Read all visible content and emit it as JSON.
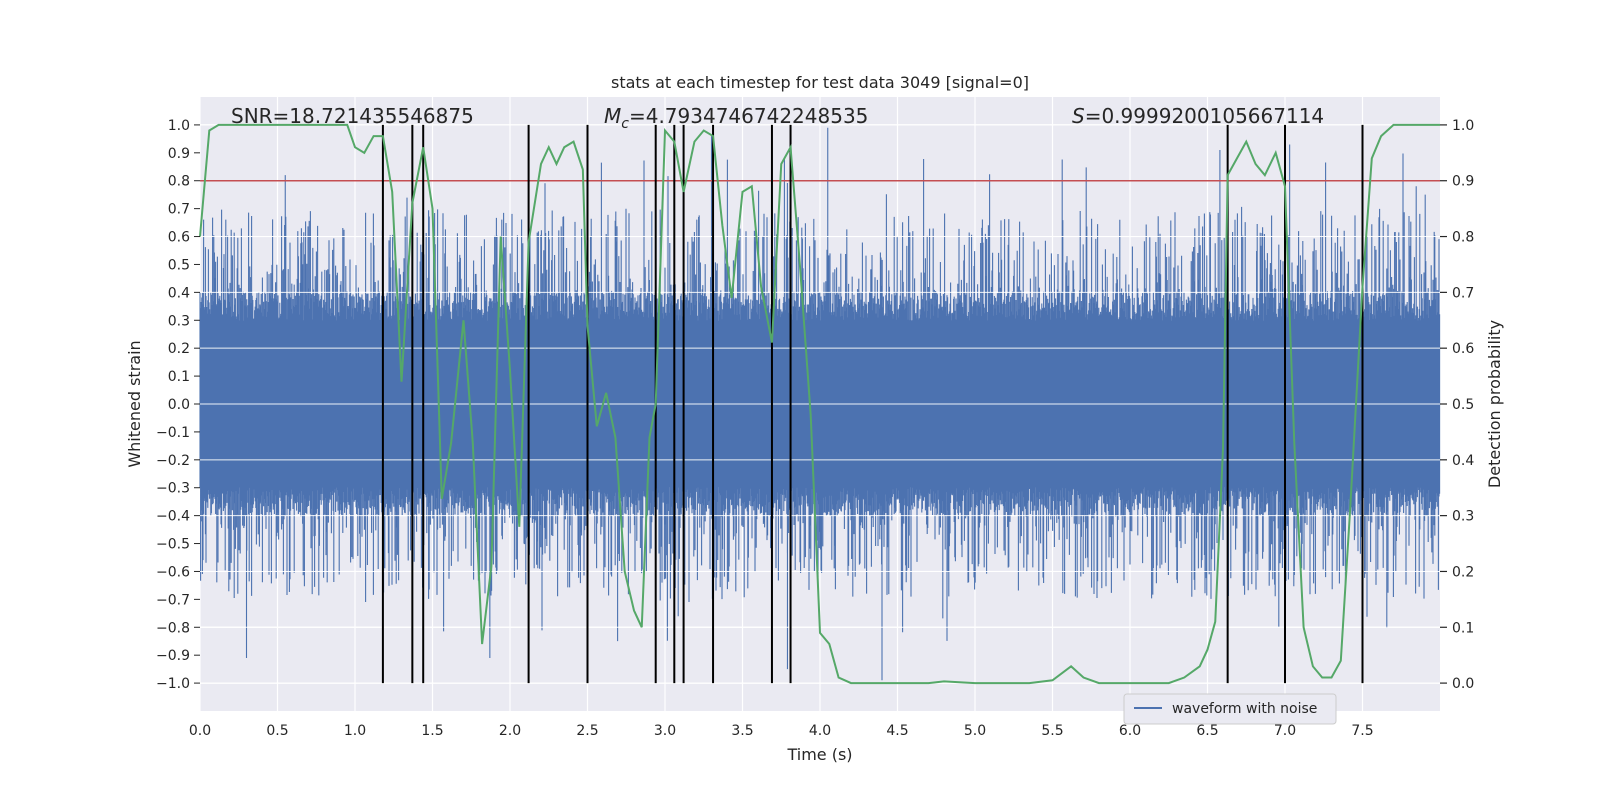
{
  "chart_data": {
    "type": "line",
    "title": "stats at each timestep for test data 3049 [signal=0]",
    "xlabel": "Time (s)",
    "ylabel": "Whitened strain",
    "y2label": "Detection probability",
    "xlim": [
      0,
      8
    ],
    "ylim": [
      -1.1,
      1.1
    ],
    "y2lim": [
      -0.05,
      1.05
    ],
    "grid": true,
    "legend_placement": "lower-right",
    "x_ticks": [
      "0.0",
      "0.5",
      "1.0",
      "1.5",
      "2.0",
      "2.5",
      "3.0",
      "3.5",
      "4.0",
      "4.5",
      "5.0",
      "5.5",
      "6.0",
      "6.5",
      "7.0",
      "7.5"
    ],
    "y_ticks": [
      "1.0",
      "0.9",
      "0.8",
      "0.7",
      "0.6",
      "0.5",
      "0.4",
      "0.3",
      "0.2",
      "0.1",
      "0.0",
      "−0.1",
      "−0.2",
      "−0.3",
      "−0.4",
      "−0.5",
      "−0.6",
      "−0.7",
      "−0.8",
      "−0.9",
      "−1.0"
    ],
    "y2_ticks": [
      "1.0",
      "0.9",
      "0.8",
      "0.7",
      "0.6",
      "0.5",
      "0.4",
      "0.3",
      "0.2",
      "0.1",
      "0.0"
    ],
    "annotations": {
      "snr": "SNR=18.721435546875",
      "mc_symbol": "M",
      "mc_sub": "c",
      "mc_value": "=4.7934746742248535",
      "s_symbol": "S",
      "s_value": "=0.9999200105667114"
    },
    "threshold_y": 0.9,
    "threshold_color": "#c44e52",
    "event_lines_x": [
      1.18,
      1.37,
      1.44,
      2.12,
      2.5,
      2.94,
      3.06,
      3.12,
      3.31,
      3.69,
      3.81,
      6.63,
      7.0,
      7.5
    ],
    "series": [
      {
        "name": "waveform with noise",
        "axis": "left",
        "color": "#4c72b0",
        "kind": "noise",
        "amplitude_core": 0.35,
        "amplitude_peak": 0.97
      },
      {
        "axis": "right",
        "color": "#55a868",
        "x": [
          0.0,
          0.06,
          0.12,
          0.2,
          0.3,
          0.5,
          0.7,
          0.9,
          0.95,
          1.0,
          1.06,
          1.12,
          1.18,
          1.24,
          1.3,
          1.37,
          1.44,
          1.5,
          1.56,
          1.62,
          1.7,
          1.76,
          1.82,
          1.88,
          1.94,
          2.0,
          2.06,
          2.12,
          2.2,
          2.25,
          2.3,
          2.35,
          2.41,
          2.47,
          2.5,
          2.56,
          2.62,
          2.68,
          2.74,
          2.8,
          2.85,
          2.9,
          2.94,
          3.0,
          3.06,
          3.12,
          3.19,
          3.25,
          3.31,
          3.37,
          3.43,
          3.5,
          3.56,
          3.62,
          3.69,
          3.75,
          3.81,
          3.87,
          3.94,
          4.0,
          4.06,
          4.12,
          4.2,
          4.3,
          4.5,
          4.7,
          4.8,
          5.0,
          5.2,
          5.35,
          5.5,
          5.62,
          5.7,
          5.8,
          6.0,
          6.25,
          6.35,
          6.45,
          6.5,
          6.55,
          6.6,
          6.63,
          6.69,
          6.75,
          6.81,
          6.87,
          6.94,
          7.0,
          7.06,
          7.12,
          7.18,
          7.24,
          7.3,
          7.36,
          7.42,
          7.5,
          7.56,
          7.62,
          7.7,
          8.0
        ],
        "values": [
          0.8,
          0.99,
          1.0,
          1.0,
          1.0,
          1.0,
          1.0,
          1.0,
          1.0,
          0.96,
          0.95,
          0.98,
          0.98,
          0.88,
          0.54,
          0.86,
          0.96,
          0.85,
          0.33,
          0.43,
          0.65,
          0.43,
          0.07,
          0.21,
          0.8,
          0.56,
          0.28,
          0.79,
          0.93,
          0.96,
          0.93,
          0.96,
          0.97,
          0.92,
          0.64,
          0.46,
          0.52,
          0.44,
          0.2,
          0.13,
          0.1,
          0.44,
          0.5,
          0.99,
          0.97,
          0.88,
          0.97,
          0.99,
          0.98,
          0.82,
          0.69,
          0.88,
          0.89,
          0.71,
          0.61,
          0.93,
          0.96,
          0.75,
          0.48,
          0.09,
          0.07,
          0.01,
          0.0,
          0.0,
          0.0,
          0.0,
          0.003,
          0.0,
          0.0,
          0.0,
          0.005,
          0.03,
          0.01,
          0.0,
          0.0,
          0.0,
          0.01,
          0.03,
          0.06,
          0.11,
          0.42,
          0.91,
          0.94,
          0.97,
          0.93,
          0.91,
          0.95,
          0.89,
          0.43,
          0.1,
          0.03,
          0.01,
          0.01,
          0.04,
          0.31,
          0.71,
          0.94,
          0.98,
          1.0,
          1.0
        ]
      }
    ]
  }
}
